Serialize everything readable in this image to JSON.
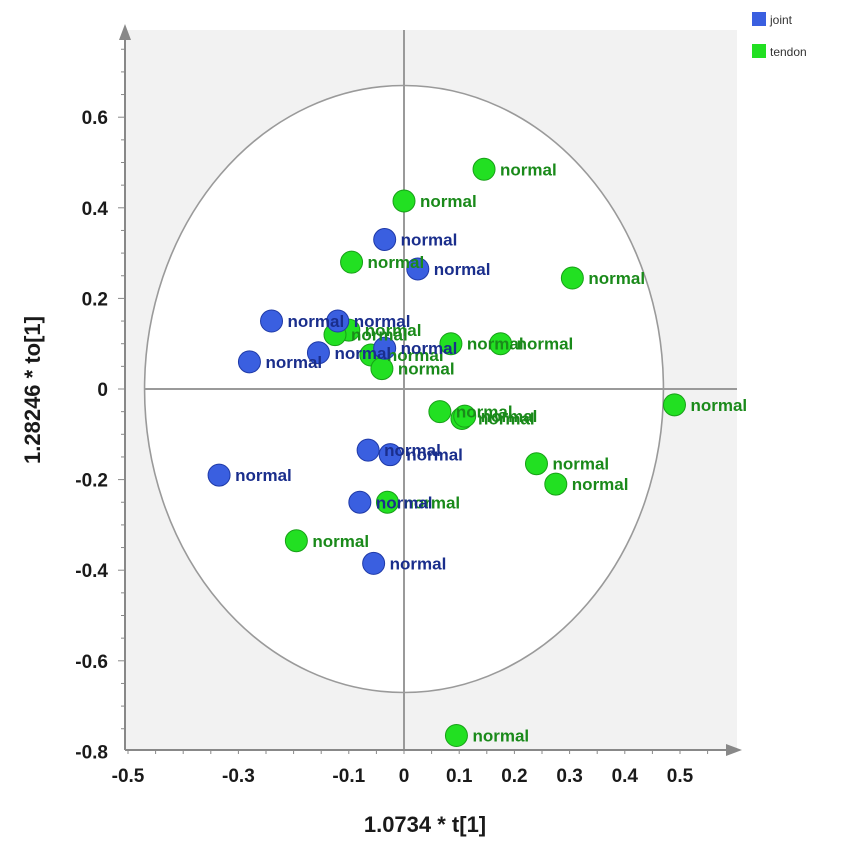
{
  "chart_data": {
    "type": "scatter",
    "xlabel": "1.0734 * t[1]",
    "ylabel": "1.28246 * to[1]",
    "xlim": [
      -0.5,
      0.58
    ],
    "ylim": [
      -0.81,
      0.77
    ],
    "x_ticks": [
      -0.5,
      -0.3,
      -0.1,
      0,
      0.1,
      0.2,
      0.3,
      0.4,
      0.5
    ],
    "x_tick_labels": [
      "-0.5",
      "-0.3",
      "-0.1",
      "0",
      "0.1",
      "0.2",
      "0.3",
      "0.4",
      "0.5"
    ],
    "y_ticks": [
      0.6,
      0.4,
      0.2,
      0,
      -0.2,
      -0.4,
      -0.6,
      -0.8
    ],
    "y_tick_labels": [
      "0.6",
      "0.4",
      "0.2",
      "0",
      "-0.2",
      "-0.4",
      "-0.6",
      "-0.8"
    ],
    "ellipse": {
      "center": [
        0,
        0
      ],
      "rx": 0.47,
      "ry": 0.67
    },
    "grid": false,
    "legend_position": "top-right",
    "series": [
      {
        "name": "joint",
        "color": "#3a5fe0",
        "label_color": "#1a2e8c",
        "points": [
          {
            "x": -0.035,
            "y": 0.33,
            "label": "normal"
          },
          {
            "x": 0.025,
            "y": 0.265,
            "label": "normal"
          },
          {
            "x": -0.24,
            "y": 0.15,
            "label": "normal"
          },
          {
            "x": -0.12,
            "y": 0.15,
            "label": "normal"
          },
          {
            "x": -0.155,
            "y": 0.08,
            "label": "normal"
          },
          {
            "x": -0.28,
            "y": 0.06,
            "label": "normal"
          },
          {
            "x": -0.035,
            "y": 0.09,
            "label": "normal"
          },
          {
            "x": -0.065,
            "y": -0.135,
            "label": "normal"
          },
          {
            "x": -0.025,
            "y": -0.145,
            "label": "normal"
          },
          {
            "x": -0.335,
            "y": -0.19,
            "label": "normal"
          },
          {
            "x": -0.08,
            "y": -0.25,
            "label": "normal"
          },
          {
            "x": -0.055,
            "y": -0.385,
            "label": "normal"
          }
        ]
      },
      {
        "name": "tendon",
        "color": "#22e022",
        "label_color": "#1a8a1a",
        "points": [
          {
            "x": 0.145,
            "y": 0.485,
            "label": "normal"
          },
          {
            "x": 0.0,
            "y": 0.415,
            "label": "normal"
          },
          {
            "x": -0.095,
            "y": 0.28,
            "label": "normal"
          },
          {
            "x": 0.305,
            "y": 0.245,
            "label": "normal"
          },
          {
            "x": -0.1,
            "y": 0.13,
            "label": "normal"
          },
          {
            "x": -0.125,
            "y": 0.12,
            "label": "normal"
          },
          {
            "x": 0.085,
            "y": 0.1,
            "label": "normal"
          },
          {
            "x": 0.175,
            "y": 0.1,
            "label": "normal"
          },
          {
            "x": -0.06,
            "y": 0.075,
            "label": "normal"
          },
          {
            "x": -0.04,
            "y": 0.045,
            "label": "normal"
          },
          {
            "x": 0.065,
            "y": -0.05,
            "label": "normal"
          },
          {
            "x": 0.105,
            "y": -0.065,
            "label": "normal"
          },
          {
            "x": 0.11,
            "y": -0.06,
            "label": "normal"
          },
          {
            "x": 0.49,
            "y": -0.035,
            "label": "normal"
          },
          {
            "x": 0.24,
            "y": -0.165,
            "label": "normal"
          },
          {
            "x": 0.275,
            "y": -0.21,
            "label": "normal"
          },
          {
            "x": -0.03,
            "y": -0.25,
            "label": "normal"
          },
          {
            "x": -0.195,
            "y": -0.335,
            "label": "normal"
          },
          {
            "x": 0.095,
            "y": -0.765,
            "label": "normal"
          }
        ]
      }
    ]
  }
}
